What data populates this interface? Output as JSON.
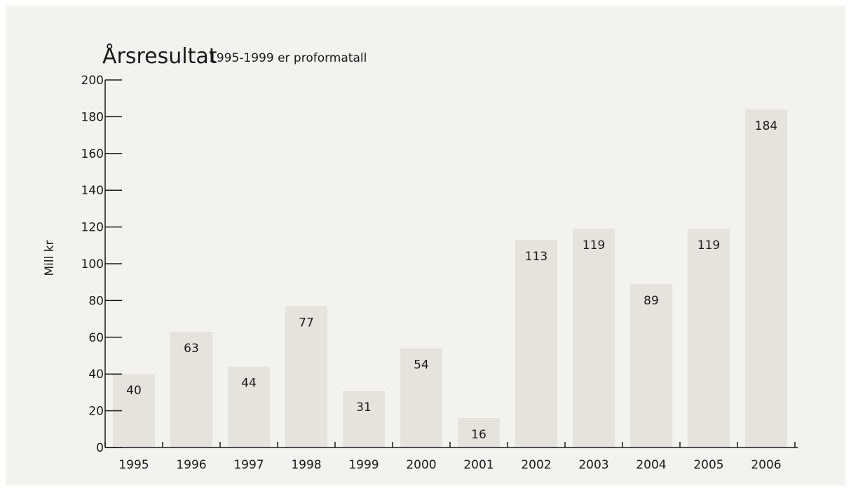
{
  "chart_data": {
    "type": "bar",
    "title": "Årsresultat",
    "subtitle": "1995-1999 er proformatall",
    "xlabel": "",
    "ylabel": "Mill kr",
    "categories": [
      "1995",
      "1996",
      "1997",
      "1998",
      "1999",
      "2000",
      "2001",
      "2002",
      "2003",
      "2004",
      "2005",
      "2006"
    ],
    "values": [
      40,
      63,
      44,
      77,
      31,
      54,
      16,
      113,
      119,
      89,
      119,
      184
    ],
    "ylim": [
      0,
      200
    ],
    "yticks": [
      0,
      20,
      40,
      60,
      80,
      100,
      120,
      140,
      160,
      180,
      200
    ],
    "grid": false,
    "colors": {
      "bar": "#e6e3de",
      "background": "#f2f2ee",
      "text": "#1a1a1a"
    }
  }
}
